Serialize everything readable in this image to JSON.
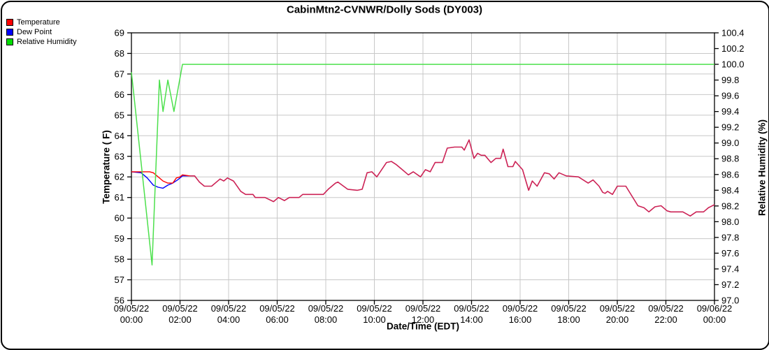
{
  "title": "CabinMtn2-CVNWR/Dolly Sods (DY003)",
  "legend": {
    "items": [
      {
        "label": "Temperature",
        "color": "#ff0000"
      },
      {
        "label": "Dew Point",
        "color": "#0000ff"
      },
      {
        "label": "Relative Humidity",
        "color": "#00dd00"
      }
    ]
  },
  "colors": {
    "grid": "#c8c8c8",
    "axis": "#000000",
    "temperature_line": "#ff0000",
    "dew_point_line": "#0000ff",
    "humidity_line": "#4ce04c",
    "temp_dew_overlap_line": "#cc2255"
  },
  "chart_data": {
    "type": "line",
    "title": "CabinMtn2-CVNWR/Dolly Sods (DY003)",
    "xlabel": "Date/Time (EDT)",
    "ylabel_left": "Temperature ( F)",
    "ylabel_right": "Relative Humidity (%)",
    "ylim_left": [
      56,
      69
    ],
    "ytick_step_left": 1,
    "ylim_right": [
      97.0,
      100.4
    ],
    "ytick_step_right": 0.2,
    "xlim_hours": [
      0,
      24
    ],
    "grid": true,
    "legend_position": "top-left",
    "x_ticks": [
      {
        "hour": 0,
        "date": "09/05/22",
        "time": "00:00"
      },
      {
        "hour": 2,
        "date": "09/05/22",
        "time": "02:00"
      },
      {
        "hour": 4,
        "date": "09/05/22",
        "time": "04:00"
      },
      {
        "hour": 6,
        "date": "09/05/22",
        "time": "06:00"
      },
      {
        "hour": 8,
        "date": "09/05/22",
        "time": "08:00"
      },
      {
        "hour": 10,
        "date": "09/05/22",
        "time": "10:00"
      },
      {
        "hour": 12,
        "date": "09/05/22",
        "time": "12:00"
      },
      {
        "hour": 14,
        "date": "09/05/22",
        "time": "14:00"
      },
      {
        "hour": 16,
        "date": "09/05/22",
        "time": "16:00"
      },
      {
        "hour": 18,
        "date": "09/05/22",
        "time": "18:00"
      },
      {
        "hour": 20,
        "date": "09/05/22",
        "time": "20:00"
      },
      {
        "hour": 22,
        "date": "09/05/22",
        "time": "22:00"
      },
      {
        "hour": 24,
        "date": "09/06/22",
        "time": "00:00"
      }
    ],
    "series": [
      {
        "name": "Temperature",
        "axis": "left",
        "units": "F",
        "color": "#ff0000",
        "overlap_color": "#cc2255",
        "overlap_note": "From ~02:15 onward the Dew Point equals the Temperature, so the two lines overlap and appear crimson.",
        "x_hours": [
          0,
          0.75,
          0.9,
          1,
          1.3,
          1.5,
          1.7,
          1.85,
          2,
          2.1,
          2.4,
          2.6,
          2.8,
          3,
          3.3,
          3.65,
          3.8,
          3.95,
          4.2,
          4.5,
          4.7,
          5,
          5.1,
          5.5,
          5.85,
          6.05,
          6.3,
          6.5,
          6.9,
          7.05,
          7.9,
          8.1,
          8.4,
          8.5,
          8.9,
          9.3,
          9.5,
          9.7,
          9.9,
          10.1,
          10.5,
          10.7,
          10.9,
          11.1,
          11.4,
          11.6,
          11.9,
          12.1,
          12.3,
          12.5,
          12.8,
          13,
          13.3,
          13.6,
          13.7,
          13.9,
          14.1,
          14.25,
          14.4,
          14.55,
          14.8,
          15,
          15.2,
          15.3,
          15.5,
          15.7,
          15.8,
          16.1,
          16.25,
          16.35,
          16.5,
          16.7,
          17,
          17.2,
          17.4,
          17.6,
          17.9,
          18.4,
          18.8,
          19,
          19.25,
          19.4,
          19.5,
          19.6,
          19.8,
          20,
          20.35,
          20.85,
          21.1,
          21.3,
          21.55,
          21.8,
          22.05,
          22.2,
          22.7,
          23,
          23.25,
          23.55,
          23.75,
          24
        ],
        "y": [
          62.25,
          62.25,
          62.2,
          62.1,
          61.8,
          61.7,
          61.7,
          61.95,
          62,
          62.1,
          62.05,
          62.05,
          61.75,
          61.55,
          61.55,
          61.9,
          61.8,
          61.95,
          61.8,
          61.3,
          61.15,
          61.15,
          61,
          61,
          60.8,
          61,
          60.85,
          61,
          61,
          61.15,
          61.15,
          61.4,
          61.7,
          61.75,
          61.4,
          61.35,
          61.4,
          62.2,
          62.25,
          62,
          62.7,
          62.75,
          62.6,
          62.4,
          62.1,
          62.25,
          62,
          62.35,
          62.25,
          62.7,
          62.7,
          63.4,
          63.45,
          63.45,
          63.3,
          63.8,
          62.9,
          63.15,
          63.05,
          63.05,
          62.7,
          62.9,
          62.9,
          63.35,
          62.5,
          62.5,
          62.75,
          62.35,
          61.75,
          61.35,
          61.8,
          61.55,
          62.2,
          62.15,
          61.9,
          62.2,
          62.05,
          62,
          61.7,
          61.85,
          61.55,
          61.25,
          61.2,
          61.3,
          61.15,
          61.55,
          61.55,
          60.6,
          60.5,
          60.3,
          60.55,
          60.6,
          60.35,
          60.3,
          60.3,
          60.1,
          60.3,
          60.3,
          60.5,
          60.65
        ]
      },
      {
        "name": "Dew Point",
        "axis": "left",
        "units": "F",
        "color": "#0000ff",
        "note": "Visible as a separate blue line only before ~02:15; afterwards identical to Temperature.",
        "x_hours": [
          0,
          0.4,
          0.65,
          0.9,
          1.1,
          1.3,
          1.5,
          1.7,
          1.9,
          2.1,
          2.4
        ],
        "y": [
          62.25,
          62.2,
          61.95,
          61.6,
          61.5,
          61.45,
          61.6,
          61.7,
          61.85,
          62.05,
          62.05
        ]
      },
      {
        "name": "Relative Humidity",
        "axis": "right",
        "units": "%",
        "color": "#4ce04c",
        "x_hours": [
          0,
          0.85,
          1.15,
          1.3,
          1.5,
          1.75,
          2.1,
          24
        ],
        "y": [
          99.9,
          97.45,
          99.8,
          99.4,
          99.8,
          99.4,
          100.0,
          100.0
        ]
      }
    ]
  }
}
